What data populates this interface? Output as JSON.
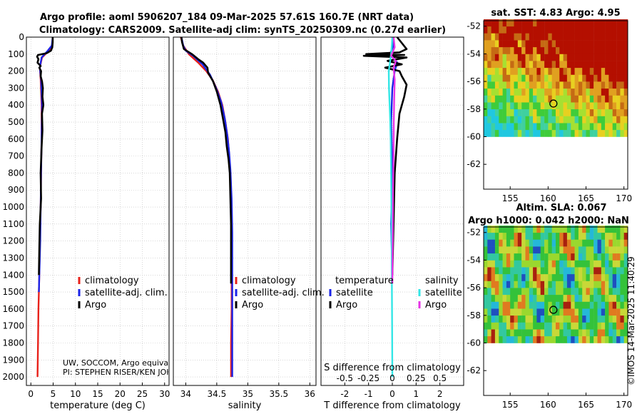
{
  "figure": {
    "title_line1": "Argo profile: aoml 5906207_184 09-Mar-2025 57.61S 160.7E (NRT data)",
    "title_line2": "Climatology: CARS2009. Satellite-adj clim: synTS_20250309.nc (0.27d earlier)",
    "credit": "©IMOS 14-Mar-2025 11:40:29",
    "float_info_1": "UW, SOCCOM, Argo equivalent",
    "float_info_2": "PI: STEPHEN RISER/KEN JOHNSON"
  },
  "colors": {
    "climatology": "#e8211a",
    "satellite_adj": "#1a23e8",
    "argo": "#000000",
    "sat_diff": "#33e6e6",
    "argo_diff": "#e633e6",
    "grid": "#bdbdbd"
  },
  "chart_data": [
    {
      "id": "temperature",
      "type": "line",
      "xlabel": "temperature (deg C)",
      "ylabel": "",
      "xlim": [
        -1,
        31
      ],
      "ylim": [
        2050,
        0
      ],
      "xticks": [
        0,
        5,
        10,
        15,
        20,
        25,
        30
      ],
      "yticks": [
        0,
        100,
        200,
        300,
        400,
        500,
        600,
        700,
        800,
        900,
        1000,
        1100,
        1200,
        1300,
        1400,
        1500,
        1600,
        1700,
        1800,
        1900,
        2000
      ],
      "legend": [
        "climatology",
        "satellite-adj. clim.",
        "Argo"
      ],
      "series": [
        {
          "name": "climatology",
          "color_key": "climatology",
          "x": [
            4.9,
            4.8,
            4.0,
            2.5,
            2.0,
            2.2,
            2.4,
            2.4,
            2.3,
            2.2,
            2.0,
            1.9,
            1.7,
            1.6,
            1.5
          ],
          "y": [
            0,
            50,
            80,
            120,
            180,
            250,
            400,
            600,
            800,
            1000,
            1200,
            1400,
            1600,
            1800,
            2000
          ]
        },
        {
          "name": "satellite-adj. clim.",
          "color_key": "satellite_adj",
          "x": [
            4.9,
            4.7,
            3.8,
            2.4,
            2.0,
            2.3,
            2.5,
            2.4,
            2.3,
            2.2,
            2.1,
            2.0,
            1.9,
            1.8
          ],
          "y": [
            0,
            50,
            80,
            120,
            180,
            250,
            400,
            600,
            800,
            1000,
            1200,
            1300,
            1400,
            1500
          ]
        },
        {
          "name": "Argo",
          "color_key": "argo",
          "x": [
            4.9,
            4.9,
            4.8,
            4.5,
            3.5,
            1.6,
            1.4,
            1.7,
            1.5,
            2.2,
            1.9,
            2.3,
            2.2,
            2.5,
            2.7,
            2.6,
            2.8,
            2.5,
            2.6,
            2.4,
            2.2,
            2.3,
            2.0,
            1.9,
            1.8
          ],
          "y": [
            0,
            30,
            60,
            80,
            95,
            105,
            115,
            130,
            150,
            170,
            180,
            200,
            230,
            260,
            300,
            350,
            400,
            450,
            550,
            650,
            800,
            950,
            1100,
            1250,
            1400
          ]
        }
      ]
    },
    {
      "id": "salinity",
      "type": "line",
      "xlabel": "salinity",
      "xlim": [
        33.8,
        36.1
      ],
      "ylim": [
        2050,
        0
      ],
      "xticks": [
        34,
        34.5,
        35,
        35.5,
        36
      ],
      "tick_labels": [
        "34",
        "34.5",
        "35",
        "35.5",
        "36"
      ],
      "legend": [
        "climatology",
        "satellite-adj. clim.",
        "Argo"
      ],
      "series": [
        {
          "name": "climatology",
          "color_key": "climatology",
          "x": [
            33.92,
            33.96,
            34.05,
            34.2,
            34.33,
            34.43,
            34.52,
            34.59,
            34.64,
            34.68,
            34.7,
            34.72,
            34.73,
            34.74,
            34.74,
            34.74,
            34.73,
            34.73
          ],
          "y": [
            0,
            50,
            100,
            150,
            200,
            250,
            320,
            400,
            500,
            600,
            700,
            800,
            1000,
            1200,
            1400,
            1600,
            1800,
            2000
          ]
        },
        {
          "name": "satellite-adj. clim.",
          "color_key": "satellite_adj",
          "x": [
            33.93,
            33.96,
            34.0,
            34.12,
            34.27,
            34.39,
            34.49,
            34.57,
            34.63,
            34.67,
            34.7,
            34.72,
            34.74,
            34.75,
            34.75,
            34.75,
            34.75,
            34.75
          ],
          "y": [
            0,
            50,
            80,
            110,
            160,
            220,
            300,
            380,
            480,
            580,
            680,
            780,
            950,
            1150,
            1350,
            1550,
            1750,
            2000
          ]
        },
        {
          "name": "Argo",
          "color_key": "argo",
          "x": [
            33.93,
            33.94,
            33.97,
            34.1,
            34.2,
            34.28,
            34.35,
            34.36,
            34.44,
            34.5,
            34.56,
            34.6,
            34.64,
            34.66,
            34.69,
            34.71,
            34.72,
            34.73,
            34.73
          ],
          "y": [
            0,
            30,
            70,
            100,
            130,
            150,
            180,
            210,
            260,
            320,
            400,
            480,
            560,
            640,
            720,
            800,
            950,
            1100,
            1450
          ]
        }
      ]
    },
    {
      "id": "difference",
      "type": "line",
      "xlabel": "T difference from climatology",
      "xlabel_top": "S difference from climatology",
      "xlim": [
        -3,
        3
      ],
      "ylim": [
        2050,
        0
      ],
      "xticks": [
        -2,
        -1,
        0,
        1,
        2
      ],
      "tick_labels": [
        "-2",
        "-1",
        "0",
        "1",
        "2"
      ],
      "s_ticks": [
        -0.5,
        -0.25,
        0,
        0.25,
        0.5
      ],
      "s_tick_labels": [
        "-0.5",
        "-0.25",
        "0",
        "0.25",
        "0.5"
      ],
      "legend_temperature_title": "temperature",
      "legend_salinity_title": "salinity",
      "legend_temperature": [
        "satellite",
        "Argo"
      ],
      "legend_salinity": [
        "satellite",
        "Argo"
      ],
      "series": [
        {
          "name": "satellite T diff",
          "color_key": "satellite_adj",
          "x": [
            0.0,
            0.05,
            -0.1,
            0.2,
            0.1,
            0.0,
            -0.05,
            0.0,
            -0.05,
            0.0
          ],
          "y": [
            0,
            50,
            100,
            150,
            200,
            300,
            500,
            800,
            1100,
            1400
          ]
        },
        {
          "name": "Argo T diff",
          "color_key": "argo",
          "x": [
            0.2,
            0.6,
            0.3,
            -1.1,
            0.5,
            -1.2,
            0.6,
            -0.2,
            0.4,
            -0.3,
            0.3,
            0.4,
            0.6,
            0.5,
            0.3,
            0.2,
            0.1,
            0.05,
            0.0
          ],
          "y": [
            0,
            70,
            90,
            100,
            105,
            110,
            120,
            140,
            160,
            180,
            200,
            230,
            280,
            350,
            450,
            600,
            800,
            1100,
            1400
          ]
        },
        {
          "name": "satellite S diff",
          "color_key": "sat_diff",
          "x": [
            0.0,
            -0.02,
            -0.05,
            -0.1,
            -0.15,
            -0.14,
            -0.1,
            -0.07,
            -0.05,
            -0.03,
            -0.02,
            -0.01,
            0.0
          ],
          "y": [
            0,
            50,
            100,
            150,
            200,
            300,
            450,
            600,
            800,
            1100,
            1400,
            1700,
            2000
          ]
        },
        {
          "name": "Argo S diff",
          "color_key": "argo_diff",
          "x": [
            0.05,
            0.1,
            -0.05,
            0.15,
            0.05,
            0.1,
            0.08,
            0.06,
            0.05,
            0.03,
            0.02,
            0.01,
            0.0
          ],
          "y": [
            0,
            60,
            110,
            140,
            180,
            250,
            350,
            500,
            700,
            900,
            1100,
            1300,
            1450
          ]
        }
      ]
    },
    {
      "id": "sst_map",
      "type": "heatmap",
      "title": "sat. SST: 4.83 Argo: 4.95",
      "xlim": [
        151.5,
        170.5
      ],
      "ylim": [
        -63.8,
        -51.6
      ],
      "xticks": [
        155,
        160,
        165,
        170
      ],
      "yticks": [
        -52,
        -54,
        -56,
        -58,
        -60,
        -62
      ],
      "data_bottom_lat": -60,
      "profile_marker": {
        "lon": 160.7,
        "lat": -57.6
      }
    },
    {
      "id": "sla_map",
      "type": "heatmap",
      "title_line1": "Altim. SLA: 0.067",
      "title_line2": "Argo h1000: 0.042 h2000: NaN",
      "xlim": [
        151.5,
        170.5
      ],
      "ylim": [
        -63.8,
        -51.6
      ],
      "xticks": [
        155,
        160,
        165,
        170
      ],
      "yticks": [
        -52,
        -54,
        -56,
        -58,
        -60,
        -62
      ],
      "data_bottom_lat": -60,
      "profile_marker": {
        "lon": 160.7,
        "lat": -57.6
      }
    }
  ]
}
